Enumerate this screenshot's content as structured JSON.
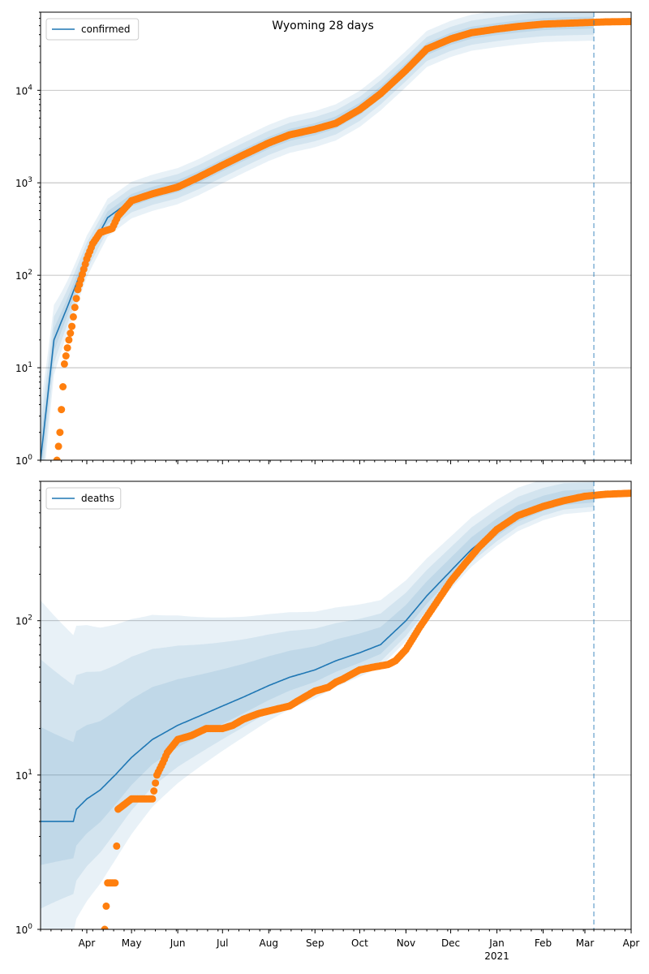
{
  "figure_title": "Wyoming 28 days",
  "x_axis": {
    "ticks": [
      "Apr",
      "May",
      "Jun",
      "Jul",
      "Aug",
      "Sep",
      "Oct",
      "Nov",
      "Dec",
      "Jan",
      "Feb",
      "Mar",
      "Apr"
    ],
    "year_label": "2021"
  },
  "colors": {
    "model": "#1f77b4",
    "observed": "#ff7f0e",
    "band": "#1f77b4",
    "grid": "#b0b0b0"
  },
  "chart_data": [
    {
      "type": "line",
      "title": "Wyoming 28 days",
      "scale": "log",
      "ylim": [
        1,
        70000
      ],
      "y_ticks": [
        1,
        10,
        100,
        1000,
        10000
      ],
      "grid": "horizontal",
      "legend": "top-left",
      "forecast_start": "2021-03-07",
      "series": [
        {
          "name": "confirmed",
          "kind": "model",
          "x": [
            "2020-03-01",
            "2020-03-10",
            "2020-03-20",
            "2020-04-01",
            "2020-04-15",
            "2020-05-01",
            "2020-05-15",
            "2020-06-01",
            "2020-06-15",
            "2020-07-01",
            "2020-07-15",
            "2020-08-01",
            "2020-08-15",
            "2020-09-01",
            "2020-09-15",
            "2020-10-01",
            "2020-10-15",
            "2020-11-01",
            "2020-11-15",
            "2020-12-01",
            "2020-12-15",
            "2021-01-01",
            "2021-01-15",
            "2021-02-01",
            "2021-02-15",
            "2021-03-07"
          ],
          "values": [
            1,
            20,
            50,
            160,
            420,
            650,
            780,
            920,
            1150,
            1550,
            2000,
            2700,
            3300,
            3800,
            4500,
            6300,
            9500,
            17000,
            28000,
            36000,
            42000,
            46000,
            49000,
            52000,
            53000,
            54000
          ]
        },
        {
          "kind": "observed",
          "x": [
            "2020-03-12",
            "2020-03-14",
            "2020-03-17",
            "2020-03-20",
            "2020-03-22",
            "2020-03-24",
            "2020-03-26",
            "2020-03-28",
            "2020-04-01",
            "2020-04-05",
            "2020-04-10",
            "2020-04-18",
            "2020-04-22",
            "2020-05-01",
            "2020-05-15",
            "2020-06-01",
            "2020-06-15",
            "2020-07-01",
            "2020-07-15",
            "2020-08-01",
            "2020-08-15",
            "2020-09-01",
            "2020-09-15",
            "2020-10-01",
            "2020-10-15",
            "2020-11-01",
            "2020-11-15",
            "2020-12-01",
            "2020-12-15",
            "2021-01-01",
            "2021-01-15",
            "2021-02-01",
            "2021-02-15",
            "2021-03-01",
            "2021-03-15",
            "2021-04-01"
          ],
          "values": [
            1,
            2,
            11,
            20,
            28,
            45,
            70,
            90,
            150,
            220,
            290,
            320,
            440,
            640,
            760,
            900,
            1150,
            1550,
            2000,
            2700,
            3300,
            3800,
            4400,
            6200,
            9200,
            16500,
            28000,
            36000,
            42000,
            46000,
            49000,
            52000,
            53000,
            54000,
            55000,
            55500
          ]
        }
      ]
    },
    {
      "type": "line",
      "scale": "log",
      "ylim": [
        1,
        800
      ],
      "y_ticks": [
        1,
        10,
        100
      ],
      "grid": "horizontal",
      "legend": "top-left",
      "forecast_start": "2021-03-07",
      "series": [
        {
          "name": "deaths",
          "kind": "model",
          "x": [
            "2020-03-01",
            "2020-03-23",
            "2020-03-25",
            "2020-04-01",
            "2020-04-10",
            "2020-04-20",
            "2020-05-01",
            "2020-05-15",
            "2020-06-01",
            "2020-06-15",
            "2020-07-01",
            "2020-07-15",
            "2020-08-01",
            "2020-08-15",
            "2020-09-01",
            "2020-09-15",
            "2020-10-01",
            "2020-10-15",
            "2020-11-01",
            "2020-11-15",
            "2020-12-01",
            "2020-12-15",
            "2021-01-01",
            "2021-01-15",
            "2021-02-01",
            "2021-02-15",
            "2021-03-07"
          ],
          "values": [
            5,
            5,
            6,
            7,
            8,
            10,
            13,
            17,
            21,
            24,
            28,
            32,
            38,
            43,
            48,
            55,
            62,
            70,
            100,
            145,
            210,
            290,
            390,
            480,
            560,
            610,
            630
          ]
        },
        {
          "kind": "observed",
          "x": [
            "2020-04-13",
            "2020-04-15",
            "2020-04-20",
            "2020-04-22",
            "2020-05-01",
            "2020-05-15",
            "2020-05-18",
            "2020-05-22",
            "2020-05-25",
            "2020-06-01",
            "2020-06-10",
            "2020-06-20",
            "2020-07-01",
            "2020-07-08",
            "2020-07-15",
            "2020-07-25",
            "2020-08-01",
            "2020-08-15",
            "2020-08-20",
            "2020-09-01",
            "2020-09-10",
            "2020-09-15",
            "2020-09-20",
            "2020-10-01",
            "2020-10-10",
            "2020-10-20",
            "2020-10-25",
            "2020-11-01",
            "2020-11-10",
            "2020-11-20",
            "2020-12-01",
            "2020-12-10",
            "2020-12-20",
            "2021-01-01",
            "2021-01-15",
            "2021-02-01",
            "2021-02-15",
            "2021-03-01",
            "2021-03-15",
            "2021-04-01"
          ],
          "values": [
            1,
            2,
            2,
            6,
            7,
            7,
            10,
            12,
            14,
            17,
            18,
            20,
            20,
            21,
            23,
            25,
            26,
            28,
            30,
            35,
            37,
            40,
            42,
            48,
            50,
            52,
            55,
            65,
            90,
            125,
            180,
            230,
            300,
            390,
            480,
            550,
            600,
            640,
            660,
            670
          ]
        }
      ]
    }
  ]
}
